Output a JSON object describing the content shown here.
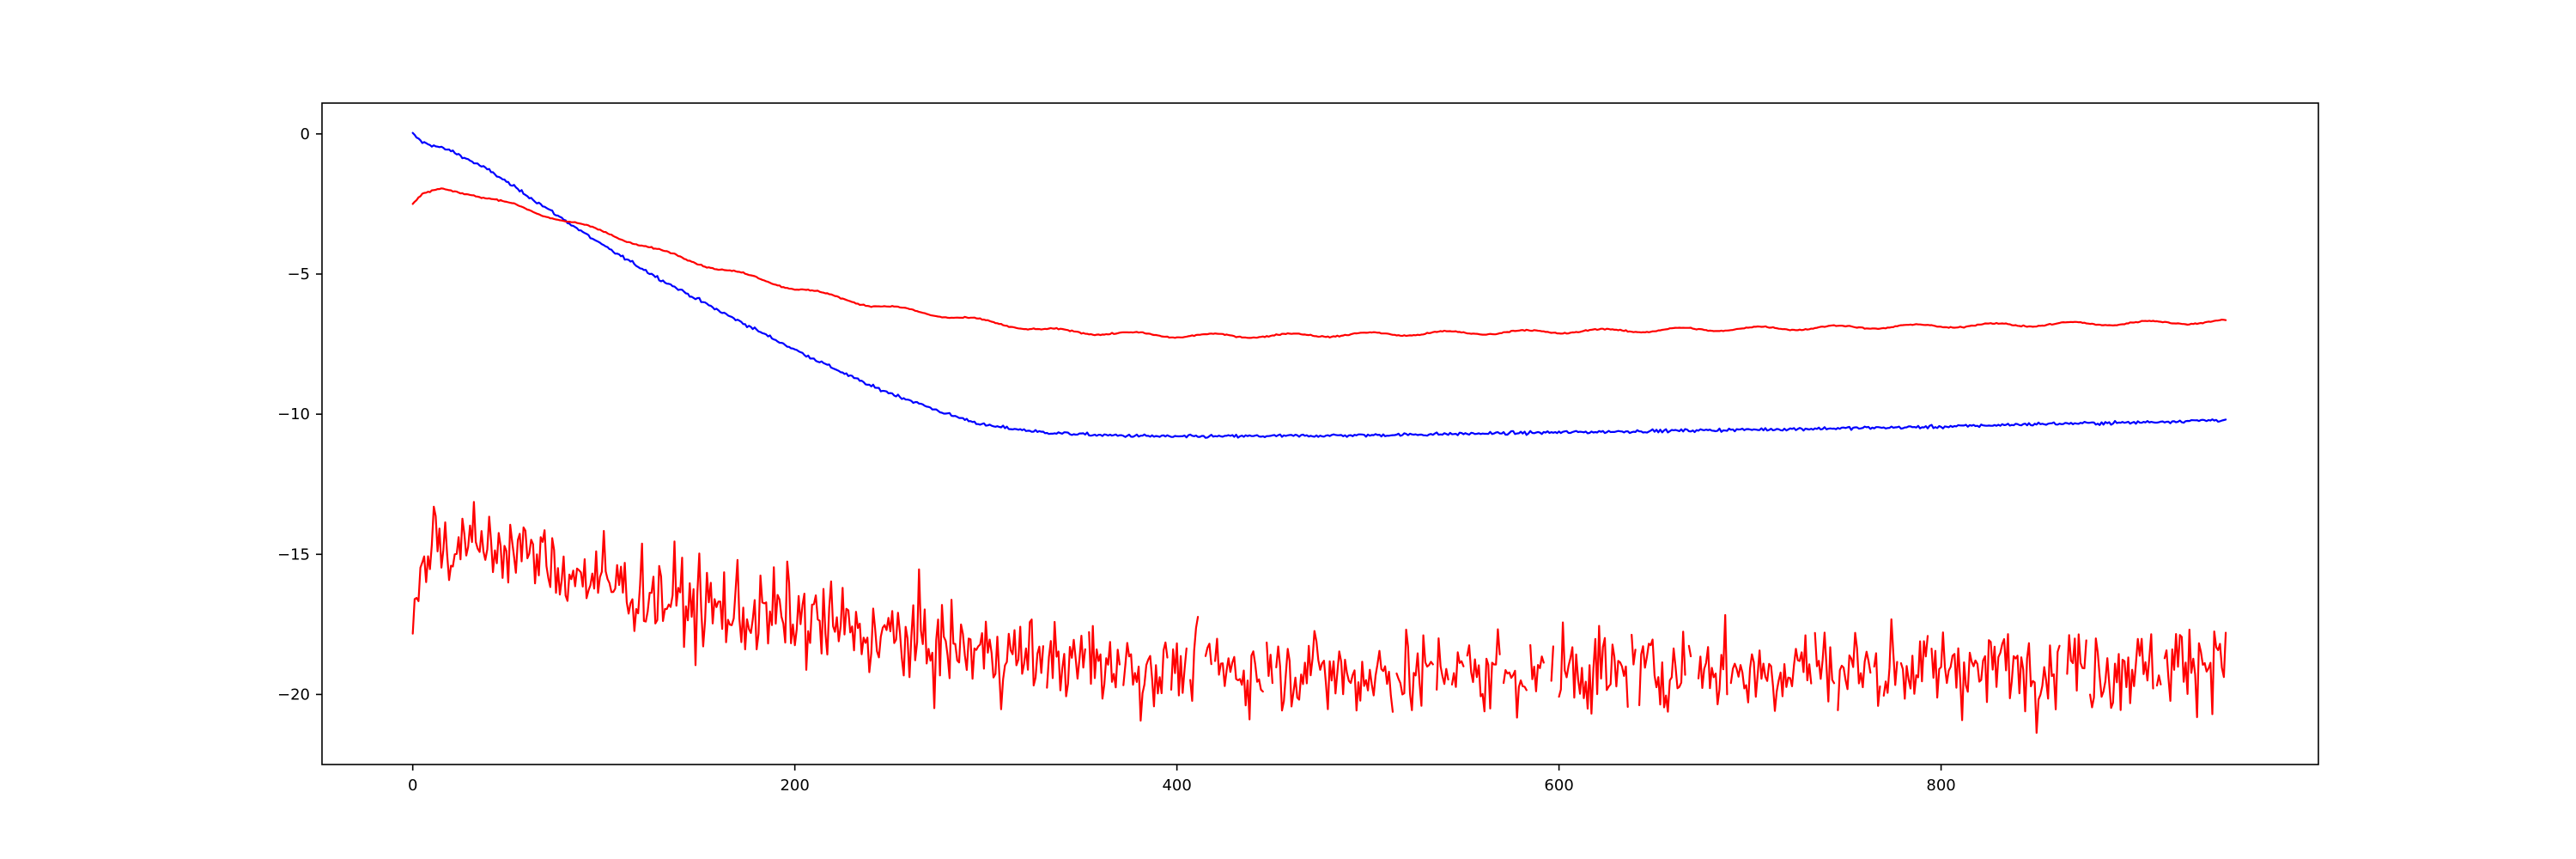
{
  "chart_data": {
    "type": "line",
    "title": "",
    "xlabel": "",
    "ylabel": "",
    "grid": false,
    "legend": "none",
    "xlim": [
      -47.5,
      997.5
    ],
    "ylim": [
      -22.5,
      1.1
    ],
    "xticks": [
      0,
      200,
      400,
      600,
      800
    ],
    "xtick_labels": [
      "0",
      "200",
      "400",
      "600",
      "800"
    ],
    "yticks": [
      0,
      -5,
      -10,
      -15,
      -20
    ],
    "ytick_labels": [
      "0",
      "−5",
      "−10",
      "−15",
      "−20"
    ],
    "n_points": 950,
    "series": [
      {
        "color": "#0000ff",
        "style": "smooth with small noise",
        "x": [
          0,
          5,
          20,
          40,
          60,
          80,
          100,
          130,
          160,
          200,
          240,
          280,
          300,
          330,
          360,
          400,
          450,
          500,
          550,
          600,
          650,
          700,
          750,
          800,
          850,
          900,
          949
        ],
        "y": [
          0,
          -0.3,
          -0.6,
          -1.3,
          -2.2,
          -3.1,
          -4.0,
          -5.2,
          -6.3,
          -7.7,
          -9.0,
          -10.0,
          -10.4,
          -10.65,
          -10.75,
          -10.8,
          -10.78,
          -10.75,
          -10.7,
          -10.65,
          -10.6,
          -10.55,
          -10.5,
          -10.45,
          -10.35,
          -10.3,
          -10.2
        ]
      },
      {
        "color": "#ff0000",
        "style": "smooth with small wiggles",
        "x": [
          0,
          5,
          15,
          30,
          50,
          80,
          100,
          130,
          160,
          200,
          240,
          280,
          310,
          330,
          360,
          400,
          450,
          500,
          550,
          600,
          650,
          700,
          750,
          800,
          850,
          900,
          949
        ],
        "y": [
          -2.5,
          -2.2,
          -2.0,
          -2.1,
          -2.5,
          -3.1,
          -3.5,
          -4.2,
          -4.8,
          -5.5,
          -6.1,
          -6.5,
          -6.8,
          -7.0,
          -7.1,
          -7.2,
          -7.2,
          -7.15,
          -7.1,
          -7.05,
          -7.0,
          -6.95,
          -6.9,
          -6.85,
          -6.8,
          -6.75,
          -6.7
        ]
      },
      {
        "color": "#ff0000",
        "style": "very noisy with occasional gaps after x≈330",
        "x": [
          0,
          10,
          20,
          40,
          60,
          80,
          100,
          130,
          160,
          200,
          250,
          300,
          350,
          400,
          450,
          500,
          550,
          600,
          650,
          700,
          750,
          800,
          850,
          900,
          949
        ],
        "y": [
          -17.5,
          -14.2,
          -14.8,
          -14.6,
          -15.0,
          -15.6,
          -16.0,
          -16.5,
          -17.0,
          -17.3,
          -18.0,
          -18.5,
          -18.9,
          -19.1,
          -19.2,
          -19.2,
          -19.2,
          -19.2,
          -19.1,
          -19.1,
          -19.0,
          -19.0,
          -19.0,
          -19.0,
          -18.7
        ]
      }
    ]
  }
}
